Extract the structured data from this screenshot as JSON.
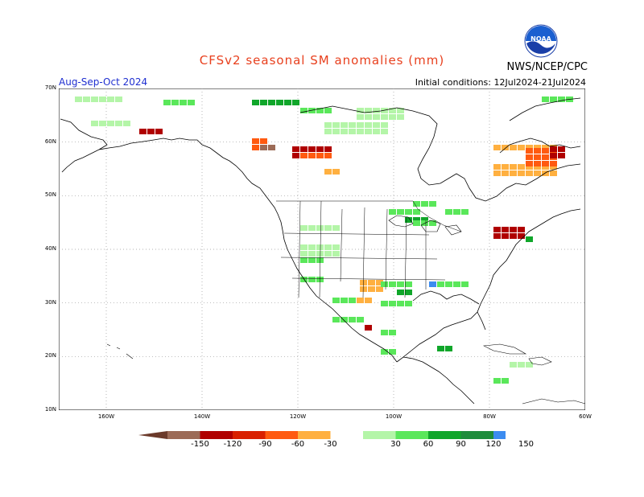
{
  "header": {
    "title": "CFSv2 seasonal SM anomalies (mm)",
    "agency": "NWS/NCEP/CPC",
    "season": "Aug-Sep-Oct 2024",
    "initial_conditions": "Initial conditions: 12Jul2024-21Jul2024",
    "logo_text": "NOAA"
  },
  "axes": {
    "lat_labels": [
      "70N",
      "60N",
      "50N",
      "40N",
      "30N",
      "20N",
      "10N"
    ],
    "lon_labels": [
      "160W",
      "140W",
      "120W",
      "100W",
      "80W",
      "60W"
    ]
  },
  "legend": {
    "labels": [
      "-150",
      "-120",
      "-90",
      "-60",
      "-30",
      "30",
      "60",
      "90",
      "120",
      "150"
    ],
    "colors": [
      "#6b3a2a",
      "#9c6b57",
      "#b00000",
      "#d92000",
      "#ff5a10",
      "#ffb040",
      "#ffffff",
      "#b4f5a8",
      "#5ae75a",
      "#10a62a",
      "#1e8c3c",
      "#3c8cf0",
      "#1a4fd8"
    ]
  }
}
